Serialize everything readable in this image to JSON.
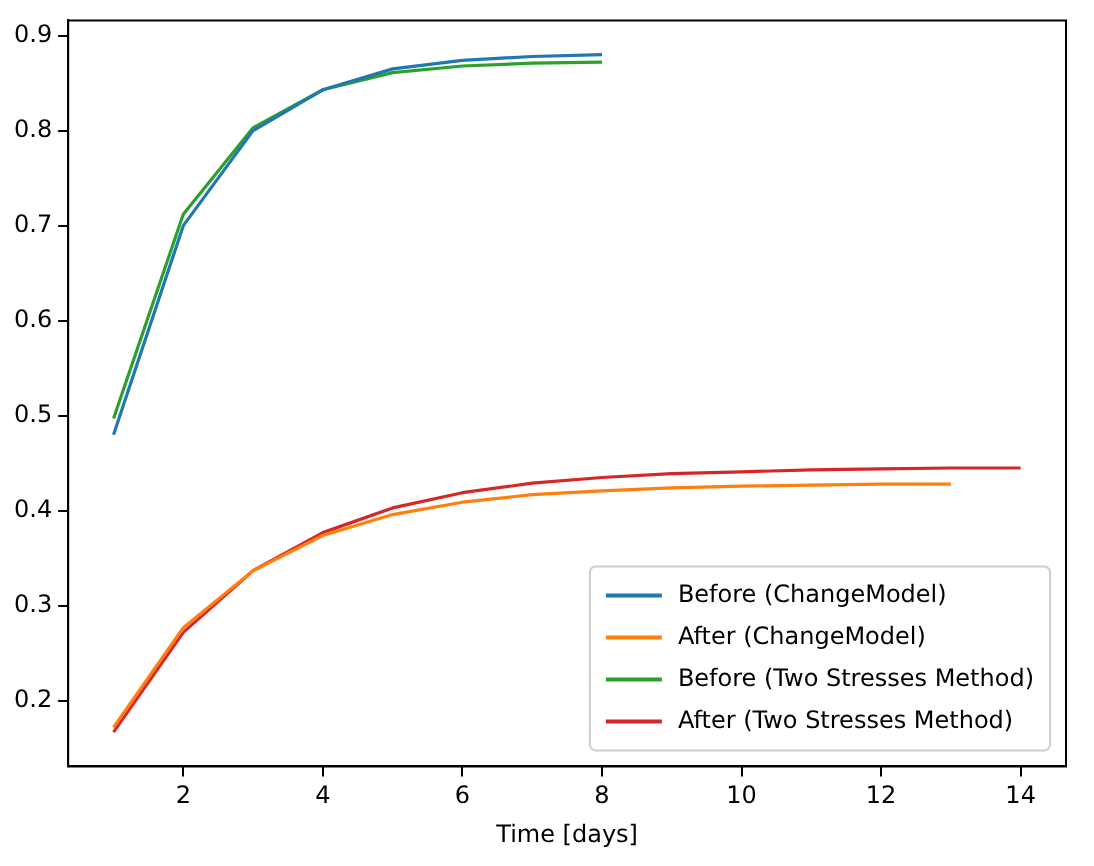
{
  "chart_data": {
    "type": "line",
    "xlabel": "Time [days]",
    "xlim": [
      0.35,
      14.65
    ],
    "xticks": [
      2,
      4,
      6,
      8,
      10,
      12,
      14
    ],
    "ylim": [
      0.131,
      0.916
    ],
    "yticks": [
      0.2,
      0.3,
      0.4,
      0.5,
      0.6,
      0.7,
      0.8,
      0.9
    ],
    "grid": false,
    "legend": "bottom right",
    "marker": "none",
    "line_style": "solid",
    "series": [
      {
        "name": "Before (ChangeModel)",
        "color": "#1f77b4",
        "x": [
          1,
          2,
          3,
          4,
          5,
          6,
          7,
          8
        ],
        "values": [
          0.48,
          0.7,
          0.8,
          0.843,
          0.865,
          0.874,
          0.878,
          0.88
        ]
      },
      {
        "name": "After (ChangeModel)",
        "color": "#ff7f0e",
        "x": [
          1,
          2,
          3,
          4,
          5,
          6,
          7,
          8,
          9,
          10,
          11,
          12,
          13
        ],
        "values": [
          0.172,
          0.277,
          0.337,
          0.374,
          0.396,
          0.409,
          0.417,
          0.421,
          0.424,
          0.426,
          0.427,
          0.428,
          0.428
        ]
      },
      {
        "name": "Before (Two Stresses Method)",
        "color": "#2ca02c",
        "x": [
          1,
          2,
          3,
          4,
          5,
          6,
          7,
          8
        ],
        "values": [
          0.497,
          0.712,
          0.803,
          0.843,
          0.861,
          0.868,
          0.871,
          0.872
        ]
      },
      {
        "name": "After (Two Stresses Method)",
        "color": "#d62728",
        "x": [
          1,
          2,
          3,
          4,
          5,
          6,
          7,
          8,
          9,
          10,
          11,
          12,
          13,
          14
        ],
        "values": [
          0.167,
          0.272,
          0.337,
          0.377,
          0.403,
          0.419,
          0.429,
          0.435,
          0.439,
          0.441,
          0.443,
          0.444,
          0.445,
          0.445
        ]
      }
    ]
  }
}
